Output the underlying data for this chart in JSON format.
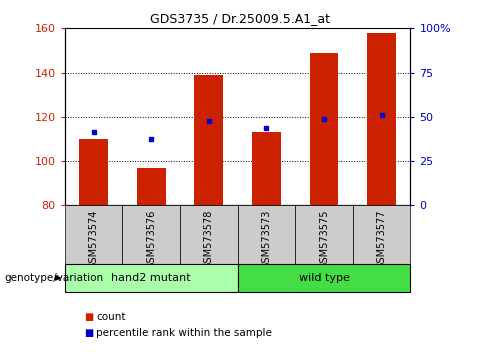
{
  "title": "GDS3735 / Dr.25009.5.A1_at",
  "categories": [
    "GSM573574",
    "GSM573576",
    "GSM573578",
    "GSM573573",
    "GSM573575",
    "GSM573577"
  ],
  "bar_values": [
    110,
    97,
    139,
    113,
    149,
    158
  ],
  "percentile_values": [
    113,
    110,
    118,
    115,
    119,
    121
  ],
  "bar_color": "#cc2200",
  "marker_color": "#0000cc",
  "ylim_left": [
    80,
    160
  ],
  "ylim_right": [
    0,
    100
  ],
  "yticks_left": [
    80,
    100,
    120,
    140,
    160
  ],
  "yticks_right": [
    0,
    25,
    50,
    75,
    100
  ],
  "yticklabels_right": [
    "0",
    "25",
    "50",
    "75",
    "100%"
  ],
  "groups": [
    {
      "label": "hand2 mutant",
      "indices": [
        0,
        1,
        2
      ],
      "color": "#aaffaa"
    },
    {
      "label": "wild type",
      "indices": [
        3,
        4,
        5
      ],
      "color": "#44dd44"
    }
  ],
  "genotype_label": "genotype/variation",
  "legend_count_label": "count",
  "legend_percentile_label": "percentile rank within the sample",
  "bar_width": 0.5,
  "tick_area_color": "#cccccc",
  "title_fontsize": 9
}
